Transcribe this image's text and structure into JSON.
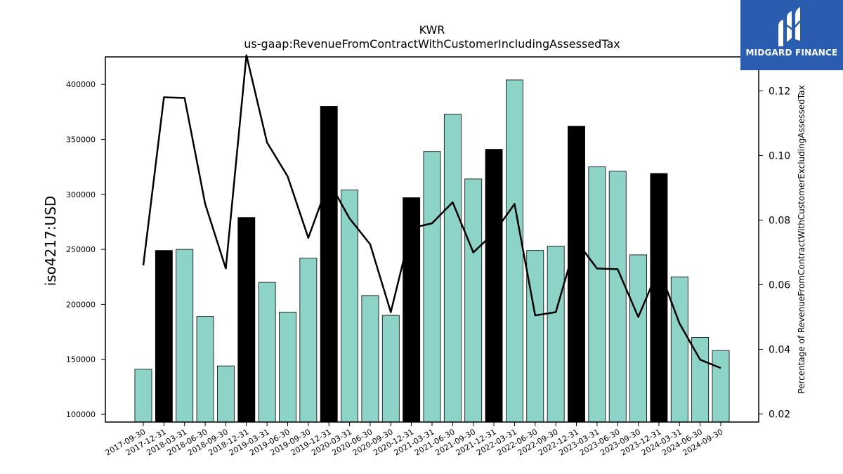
{
  "brand": {
    "name": "MIDGARD FINANCE",
    "bg_color": "#2a5db0"
  },
  "chart_data": {
    "type": "bar",
    "title": "KWR",
    "subtitle": "us-gaap:RevenueFromContractWithCustomerIncludingAssessedTax",
    "ylabel": "iso4217:USD",
    "y2label": "Percentage of RevenueFromContractWithCustomerExcludingAssessedTax",
    "ylim": [
      93000,
      425000
    ],
    "y2lim": [
      0.0175,
      0.1305
    ],
    "yticks": [
      100000,
      150000,
      200000,
      250000,
      300000,
      350000,
      400000
    ],
    "y2ticks": [
      0.02,
      0.04,
      0.06,
      0.08,
      0.1,
      0.12
    ],
    "y2tick_labels": [
      "0.02",
      "0.04",
      "0.06",
      "0.08",
      "0.10",
      "0.12"
    ],
    "categories": [
      "2017-09-30",
      "2017-12-31",
      "2018-03-31",
      "2018-06-30",
      "2018-09-30",
      "2018-12-31",
      "2019-03-31",
      "2019-06-30",
      "2019-09-30",
      "2019-12-31",
      "2020-03-31",
      "2020-06-30",
      "2020-09-30",
      "2020-12-31",
      "2021-03-31",
      "2021-06-30",
      "2021-09-30",
      "2021-12-31",
      "2022-03-31",
      "2022-06-30",
      "2022-09-30",
      "2022-12-31",
      "2023-03-31",
      "2023-06-30",
      "2023-09-30",
      "2023-12-31",
      "2024-03-31",
      "2024-06-30",
      "2024-09-30"
    ],
    "series": [
      {
        "type": "bar",
        "values": [
          141000,
          249000,
          250000,
          189000,
          144000,
          279000,
          220000,
          193000,
          242000,
          380000,
          304000,
          208000,
          190000,
          297000,
          339000,
          373000,
          314000,
          341000,
          404000,
          249000,
          253000,
          362000,
          325000,
          321000,
          245000,
          319000,
          225000,
          170000,
          158000
        ],
        "highlight_indices": [
          1,
          5,
          9,
          13,
          17,
          21,
          25
        ],
        "color": "#8dd3c7",
        "highlight_color": "#000000"
      },
      {
        "type": "line",
        "axis": "right",
        "values": [
          0.066,
          0.118,
          0.1178,
          0.085,
          0.065,
          0.131,
          0.104,
          0.0935,
          0.0745,
          0.092,
          0.0805,
          0.0725,
          0.0515,
          0.0775,
          0.079,
          0.0855,
          0.07,
          0.076,
          0.085,
          0.0505,
          0.0515,
          0.0735,
          0.065,
          0.0648,
          0.05,
          0.065,
          0.048,
          0.0368,
          0.0342
        ],
        "color": "#000000"
      }
    ],
    "grid": false,
    "legend": "none"
  }
}
